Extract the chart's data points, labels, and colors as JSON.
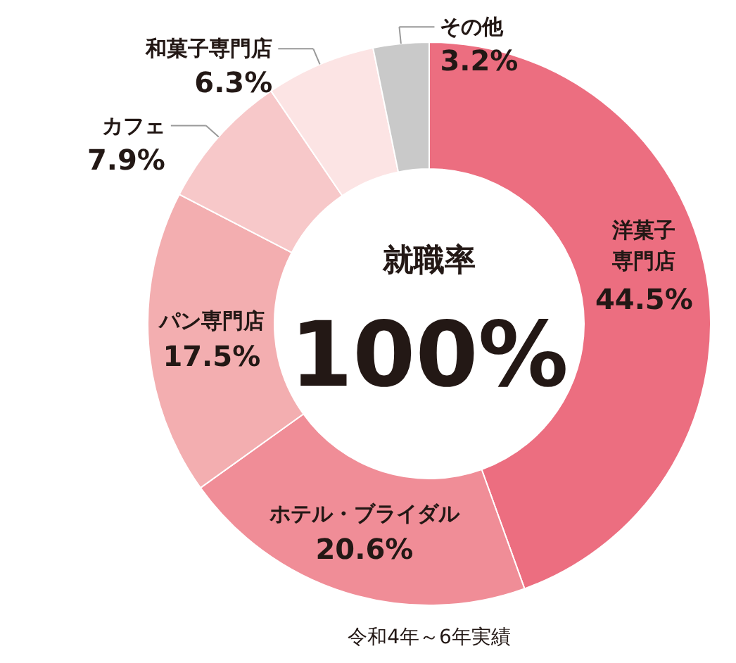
{
  "chart_data": {
    "type": "donut",
    "categories": [
      "洋菓子専門店",
      "ホテル・ブライダル",
      "パン専門店",
      "カフェ",
      "和菓子専門店",
      "その他"
    ],
    "values": [
      44.5,
      20.6,
      17.5,
      7.9,
      6.3,
      3.2
    ],
    "value_labels": [
      "44.5%",
      "20.6%",
      "17.5%",
      "7.9%",
      "6.3%",
      "3.2%"
    ],
    "colors": [
      "#ec6e80",
      "#f08d97",
      "#f3aeb0",
      "#f7c8c9",
      "#fce4e4",
      "#c9c9c9"
    ],
    "annotations": [
      "就職率",
      "100%",
      "令和4年～6年実績"
    ]
  }
}
